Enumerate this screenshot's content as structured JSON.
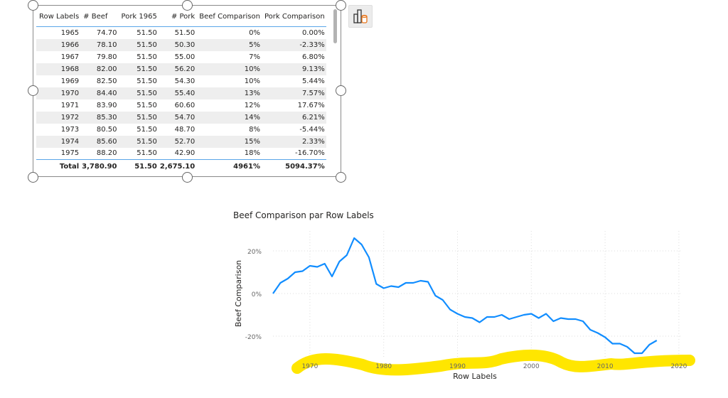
{
  "table": {
    "columns": [
      "Row Labels",
      "# Beef",
      "Pork 1965",
      "# Pork",
      "Beef Comparison",
      "Pork Comparison"
    ],
    "rows": [
      [
        "1965",
        "74.70",
        "51.50",
        "51.50",
        "0%",
        "0.00%"
      ],
      [
        "1966",
        "78.10",
        "51.50",
        "50.30",
        "5%",
        "-2.33%"
      ],
      [
        "1967",
        "79.80",
        "51.50",
        "55.00",
        "7%",
        "6.80%"
      ],
      [
        "1968",
        "82.00",
        "51.50",
        "56.20",
        "10%",
        "9.13%"
      ],
      [
        "1969",
        "82.50",
        "51.50",
        "54.30",
        "10%",
        "5.44%"
      ],
      [
        "1970",
        "84.40",
        "51.50",
        "55.40",
        "13%",
        "7.57%"
      ],
      [
        "1971",
        "83.90",
        "51.50",
        "60.60",
        "12%",
        "17.67%"
      ],
      [
        "1972",
        "85.30",
        "51.50",
        "54.70",
        "14%",
        "6.21%"
      ],
      [
        "1973",
        "80.50",
        "51.50",
        "48.70",
        "8%",
        "-5.44%"
      ],
      [
        "1974",
        "85.60",
        "51.50",
        "52.70",
        "15%",
        "2.33%"
      ],
      [
        "1975",
        "88.20",
        "51.50",
        "42.90",
        "18%",
        "-16.70%"
      ]
    ],
    "total": [
      "Total",
      "3,780.90",
      "51.50",
      "2,675.10",
      "4961%",
      "5094.37%"
    ]
  },
  "format_icon": "chart-database-icon",
  "chart_data": {
    "type": "line",
    "title": "Beef Comparison par Row Labels",
    "xlabel": "Row Labels",
    "ylabel": "Beef Comparison",
    "xlim": [
      1965,
      2021
    ],
    "ylim": [
      -30,
      30
    ],
    "xticks": [
      "1970",
      "1980",
      "1990",
      "2000",
      "2010",
      "2020"
    ],
    "yticks": [
      "20%",
      "0%",
      "-20%"
    ],
    "grid": true,
    "color": "#118dff",
    "x": [
      1965,
      1966,
      1967,
      1968,
      1969,
      1970,
      1971,
      1972,
      1973,
      1974,
      1975,
      1976,
      1977,
      1978,
      1979,
      1980,
      1981,
      1982,
      1983,
      1984,
      1985,
      1986,
      1987,
      1988,
      1989,
      1990,
      1991,
      1992,
      1993,
      1994,
      1995,
      1996,
      1997,
      1998,
      1999,
      2000,
      2001,
      2002,
      2003,
      2004,
      2005,
      2006,
      2007,
      2008,
      2009,
      2010,
      2011,
      2012,
      2013,
      2014,
      2015,
      2016,
      2017
    ],
    "y": [
      0,
      5,
      7,
      10,
      10.5,
      13,
      12.5,
      14,
      8,
      15,
      18,
      26,
      23,
      17,
      4.5,
      2.5,
      3.5,
      3,
      5,
      5,
      6,
      5.5,
      -1,
      -3,
      -7.5,
      -9.5,
      -11,
      -11.5,
      -13.5,
      -11,
      -11,
      -10,
      -12,
      -11,
      -10,
      -9.5,
      -11.5,
      -9.5,
      -13,
      -11.5,
      -12,
      -12,
      -13,
      -17,
      -18.5,
      -20.5,
      -23.5,
      -23.5,
      -25,
      -28,
      -28,
      -24,
      -22
    ]
  }
}
